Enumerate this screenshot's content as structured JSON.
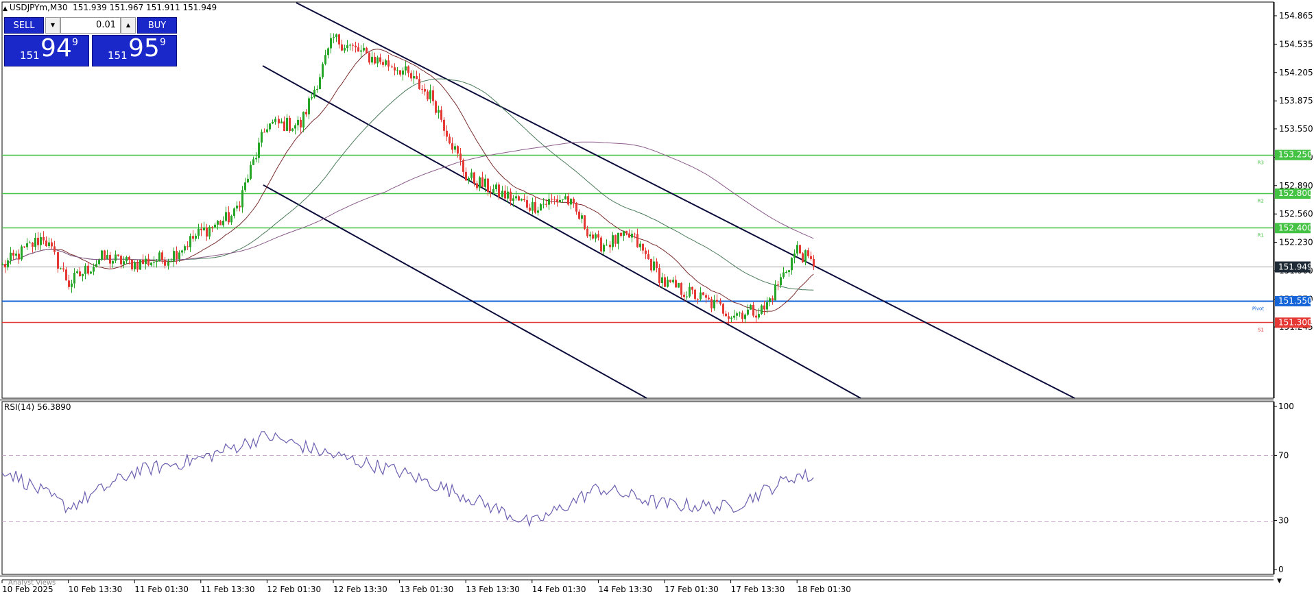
{
  "header": {
    "collapse_icon": "triangle-up-icon",
    "symbol": "USDJPYm,M30",
    "ohlc": "151.939 151.967 151.911 151.949"
  },
  "trade_panel": {
    "sell_label": "SELL",
    "buy_label": "BUY",
    "lot_value": "0.01",
    "sell_price": {
      "small": "151",
      "big": "94",
      "sup": "9"
    },
    "buy_price": {
      "small": "151",
      "big": "95",
      "sup": "9"
    }
  },
  "price_axis": {
    "ticks": [
      "154.865",
      "154.535",
      "154.205",
      "153.875",
      "153.550",
      "153.220",
      "152.890",
      "152.560",
      "152.230",
      "151.900",
      "151.570",
      "151.245"
    ],
    "current_price": "151.949",
    "current_price_color": "#1e2a35"
  },
  "levels": [
    {
      "label": "153.250",
      "value": 153.25,
      "color": "#44c244",
      "tag": "R3"
    },
    {
      "label": "152.800",
      "value": 152.8,
      "color": "#44c244",
      "tag": "R2"
    },
    {
      "label": "152.400",
      "value": 152.4,
      "color": "#44c244",
      "tag": "R1"
    },
    {
      "label": "151.550",
      "value": 151.55,
      "color": "#1565d8",
      "tag": "Pivot"
    },
    {
      "label": "151.300",
      "value": 151.3,
      "color": "#e53935",
      "tag": "S1"
    }
  ],
  "rsi": {
    "label": "RSI(14) 56.3890",
    "ticks": [
      "100",
      "70",
      "30",
      "0"
    ],
    "color": "#6b5fb0"
  },
  "time_axis": {
    "labels": [
      "10 Feb 2025",
      "10 Feb 13:30",
      "11 Feb 01:30",
      "11 Feb 13:30",
      "12 Feb 01:30",
      "12 Feb 13:30",
      "13 Feb 01:30",
      "13 Feb 13:30",
      "14 Feb 01:30",
      "14 Feb 13:30",
      "17 Feb 01:30",
      "17 Feb 13:30",
      "18 Feb 01:30"
    ]
  },
  "footer": {
    "tab_label": "Analyst Views"
  },
  "chart_data": [
    {
      "type": "candlestick",
      "symbol": "USDJPYm",
      "timeframe": "M30",
      "ylim": [
        151.2,
        154.95
      ],
      "y_ticks": [
        154.865,
        154.535,
        154.205,
        153.875,
        153.55,
        153.22,
        152.89,
        152.56,
        152.23,
        151.9,
        151.57,
        151.245
      ],
      "close_path": [
        [
          "10 Feb 2025",
          151.95
        ],
        [
          "10 Feb 07:30",
          152.3
        ],
        [
          "10 Feb 13:30",
          151.75
        ],
        [
          "10 Feb 19:30",
          152.05
        ],
        [
          "11 Feb 01:30",
          151.98
        ],
        [
          "11 Feb 07:30",
          152.05
        ],
        [
          "11 Feb 13:30",
          152.35
        ],
        [
          "11 Feb 19:30",
          152.55
        ],
        [
          "12 Feb 01:30",
          153.6
        ],
        [
          "12 Feb 07:30",
          153.6
        ],
        [
          "12 Feb 13:30",
          154.6
        ],
        [
          "12 Feb 19:30",
          154.4
        ],
        [
          "13 Feb 01:30",
          154.25
        ],
        [
          "13 Feb 07:30",
          153.9
        ],
        [
          "13 Feb 13:30",
          153.0
        ],
        [
          "13 Feb 19:30",
          152.8
        ],
        [
          "14 Feb 01:30",
          152.65
        ],
        [
          "14 Feb 07:30",
          152.75
        ],
        [
          "14 Feb 13:30",
          152.2
        ],
        [
          "14 Feb 19:30",
          152.3
        ],
        [
          "17 Feb 01:30",
          151.75
        ],
        [
          "17 Feb 07:30",
          151.6
        ],
        [
          "17 Feb 13:30",
          151.4
        ],
        [
          "17 Feb 19:30",
          151.45
        ],
        [
          "18 Feb 01:30",
          152.15
        ],
        [
          "18 Feb 04:30",
          151.949
        ]
      ],
      "moving_averages": [
        "short",
        "medium",
        "long"
      ],
      "trend_channel": "descending, three parallel lines"
    },
    {
      "type": "line",
      "title": "RSI(14) 56.3890",
      "ylim": [
        0,
        100
      ],
      "levels": [
        70,
        30
      ],
      "x": [
        "10 Feb 2025",
        "10 Feb 13:30",
        "11 Feb 01:30",
        "11 Feb 13:30",
        "12 Feb 01:30",
        "12 Feb 13:30",
        "13 Feb 01:30",
        "13 Feb 13:30",
        "14 Feb 01:30",
        "14 Feb 13:30",
        "17 Feb 01:30",
        "17 Feb 13:30",
        "18 Feb 01:30",
        "18 Feb 04:30"
      ],
      "values": [
        62,
        38,
        60,
        68,
        82,
        70,
        60,
        45,
        28,
        50,
        40,
        38,
        58,
        56.389
      ]
    }
  ]
}
